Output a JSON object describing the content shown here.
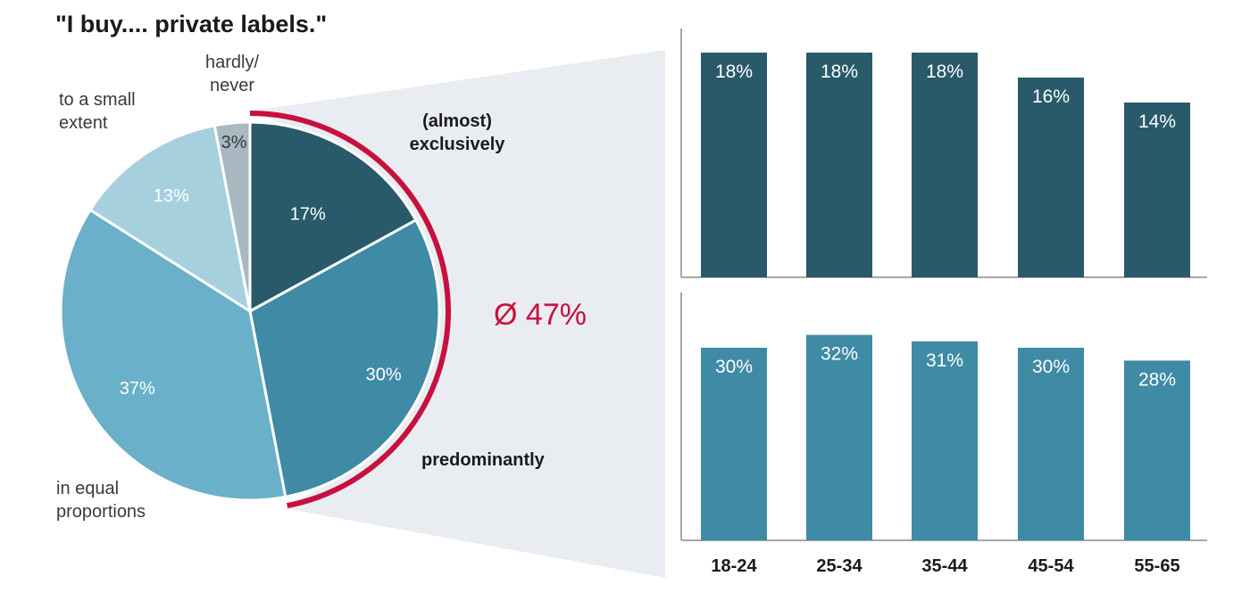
{
  "colors": {
    "exclusively": "#285a6a",
    "predominantly": "#3f8aa5",
    "equal": "#6ab0c8",
    "small": "#a7d0de",
    "never": "#a9b8c1",
    "accent": "#c8103e",
    "band": "#e9edf1",
    "axis": "#8a8a8a"
  },
  "chart_data": [
    {
      "type": "pie",
      "title": "\"I buy.... private labels.\"",
      "slices": [
        {
          "key": "exclusively",
          "label_lines": [
            "(almost)",
            "exclusively"
          ],
          "value": 17,
          "value_label": "17%"
        },
        {
          "key": "predominantly",
          "label_lines": [
            "predominantly"
          ],
          "value": 30,
          "value_label": "30%"
        },
        {
          "key": "equal",
          "label_lines": [
            "in equal",
            "proportions"
          ],
          "value": 37,
          "value_label": "37%"
        },
        {
          "key": "small",
          "label_lines": [
            "to a small",
            "extent"
          ],
          "value": 13,
          "value_label": "13%"
        },
        {
          "key": "never",
          "label_lines": [
            "hardly/",
            "never"
          ],
          "value": 3,
          "value_label": "3%"
        }
      ],
      "highlight_label": "Ø 47%"
    },
    {
      "type": "bar",
      "categories": [
        "18-24",
        "25-34",
        "35-44",
        "45-54",
        "55-65"
      ],
      "values": [
        18,
        18,
        18,
        16,
        14
      ],
      "value_labels": [
        "18%",
        "18%",
        "18%",
        "16%",
        "14%"
      ],
      "ylim": [
        0,
        20
      ]
    },
    {
      "type": "bar",
      "categories": [
        "18-24",
        "25-34",
        "35-44",
        "45-54",
        "55-65"
      ],
      "values": [
        30,
        32,
        31,
        30,
        28
      ],
      "value_labels": [
        "30%",
        "32%",
        "31%",
        "30%",
        "28%"
      ],
      "ylim": [
        0,
        37
      ]
    }
  ]
}
